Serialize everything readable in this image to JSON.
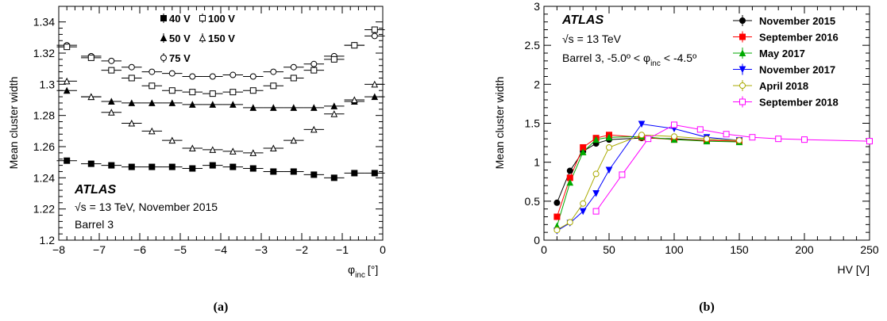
{
  "chart_data": [
    {
      "panel_label": "(a)",
      "type": "scatter",
      "xlabel_main": "φ",
      "xlabel_sub": "inc",
      "xlabel_unit": "[°]",
      "ylabel": "Mean cluster width",
      "xlim": [
        -8,
        0
      ],
      "ylim": [
        1.2,
        1.35
      ],
      "xticks": [
        -8,
        -7,
        -6,
        -5,
        -4,
        -3,
        -2,
        -1,
        0
      ],
      "xtick_labels": [
        "−8",
        "−7",
        "−6",
        "−5",
        "−4",
        "−3",
        "−2",
        "−1",
        "0"
      ],
      "yticks": [
        1.2,
        1.22,
        1.24,
        1.26,
        1.28,
        1.3,
        1.32,
        1.34
      ],
      "ytick_labels": [
        "1.2",
        "1.22",
        "1.24",
        "1.26",
        "1.28",
        "1.3",
        "1.32",
        "1.34"
      ],
      "experiment": "ATLAS",
      "info_lines": [
        "√s = 13 TeV, November 2015",
        "Barrel 3"
      ],
      "legend_position": "top",
      "series": [
        {
          "name": "40 V",
          "marker": "square-filled",
          "x": [
            -7.8,
            -7.2,
            -6.7,
            -6.2,
            -5.7,
            -5.2,
            -4.7,
            -4.2,
            -3.7,
            -3.2,
            -2.7,
            -2.2,
            -1.7,
            -1.2,
            -0.7,
            -0.2
          ],
          "y": [
            1.251,
            1.249,
            1.248,
            1.247,
            1.247,
            1.247,
            1.246,
            1.248,
            1.247,
            1.246,
            1.244,
            1.244,
            1.242,
            1.24,
            1.243,
            1.243
          ]
        },
        {
          "name": "50 V",
          "marker": "triangle-filled",
          "x": [
            -7.8,
            -7.2,
            -6.7,
            -6.2,
            -5.7,
            -5.2,
            -4.7,
            -4.2,
            -3.7,
            -3.2,
            -2.7,
            -2.2,
            -1.7,
            -1.2,
            -0.7,
            -0.2
          ],
          "y": [
            1.296,
            1.292,
            1.289,
            1.288,
            1.288,
            1.288,
            1.287,
            1.287,
            1.287,
            1.285,
            1.285,
            1.285,
            1.285,
            1.286,
            1.289,
            1.292
          ]
        },
        {
          "name": "75 V",
          "marker": "circle-open",
          "x": [
            -7.8,
            -7.2,
            -6.7,
            -6.2,
            -5.7,
            -5.2,
            -4.7,
            -4.2,
            -3.7,
            -3.2,
            -2.7,
            -2.2,
            -1.7,
            -1.2,
            -0.7,
            -0.2
          ],
          "y": [
            1.325,
            1.318,
            1.315,
            1.311,
            1.308,
            1.307,
            1.305,
            1.305,
            1.306,
            1.305,
            1.308,
            1.311,
            1.313,
            1.318,
            1.325,
            1.331
          ]
        },
        {
          "name": "100 V",
          "marker": "square-open",
          "x": [
            -7.8,
            -7.2,
            -6.7,
            -6.2,
            -5.7,
            -5.2,
            -4.7,
            -4.2,
            -3.7,
            -3.2,
            -2.7,
            -2.2,
            -1.7,
            -1.2,
            -0.7,
            -0.2
          ],
          "y": [
            1.324,
            1.317,
            1.309,
            1.304,
            1.299,
            1.296,
            1.295,
            1.294,
            1.295,
            1.296,
            1.299,
            1.304,
            1.309,
            1.316,
            1.325,
            1.335
          ]
        },
        {
          "name": "150 V",
          "marker": "triangle-open",
          "x": [
            -7.8,
            -7.2,
            -6.7,
            -6.2,
            -5.7,
            -5.2,
            -4.7,
            -4.2,
            -3.7,
            -3.2,
            -2.7,
            -2.2,
            -1.7,
            -1.2,
            -0.7,
            -0.2
          ],
          "y": [
            1.302,
            1.292,
            1.282,
            1.275,
            1.27,
            1.264,
            1.259,
            1.258,
            1.257,
            1.256,
            1.259,
            1.264,
            1.271,
            1.281,
            1.29,
            1.3
          ]
        }
      ]
    },
    {
      "panel_label": "(b)",
      "type": "line",
      "xlabel": "HV [V]",
      "ylabel": "Mean cluster width",
      "xlim": [
        0,
        250
      ],
      "ylim": [
        0,
        3
      ],
      "xticks": [
        0,
        50,
        100,
        150,
        200,
        250
      ],
      "xtick_labels": [
        "0",
        "50",
        "100",
        "150",
        "200",
        "250"
      ],
      "yticks": [
        0,
        0.5,
        1,
        1.5,
        2,
        2.5,
        3
      ],
      "ytick_labels": [
        "0",
        "0.5",
        "1",
        "1.5",
        "2",
        "2.5",
        "3"
      ],
      "experiment": "ATLAS",
      "info_line1": "√s = 13 TeV",
      "info_line2_pre": "Barrel 3, -5.0º < φ",
      "info_line2_sub": "inc",
      "info_line2_post": "< -4.5º",
      "legend_position": "top-right",
      "series": [
        {
          "name": "November 2015",
          "color": "#000000",
          "marker": "circle-filled",
          "x": [
            10,
            20,
            30,
            40,
            50,
            75,
            100,
            125,
            150
          ],
          "y": [
            0.48,
            0.89,
            1.14,
            1.24,
            1.29,
            1.31,
            1.3,
            1.28,
            1.27
          ]
        },
        {
          "name": "September 2016",
          "color": "#ff0000",
          "marker": "square-filled",
          "x": [
            10,
            20,
            30,
            40,
            50,
            75,
            100,
            125,
            150
          ],
          "y": [
            0.3,
            0.8,
            1.19,
            1.31,
            1.35,
            1.32,
            1.29,
            1.28,
            1.27
          ]
        },
        {
          "name": "May 2017",
          "color": "#00aa00",
          "marker": "triangle-filled",
          "x": [
            10,
            20,
            30,
            40,
            50,
            75,
            100,
            125,
            150
          ],
          "y": [
            0.18,
            0.74,
            1.13,
            1.29,
            1.32,
            1.33,
            1.29,
            1.27,
            1.26
          ]
        },
        {
          "name": "November 2017",
          "color": "#0000ff",
          "marker": "triangle-down-filled",
          "x": [
            10,
            20,
            30,
            40,
            50,
            75,
            100,
            125,
            150
          ],
          "y": [
            0.12,
            0.22,
            0.37,
            0.6,
            0.9,
            1.49,
            1.43,
            1.32,
            1.28
          ]
        },
        {
          "name": "April 2018",
          "color": "#aaaa00",
          "marker": "circle-open",
          "x": [
            10,
            20,
            30,
            40,
            50,
            75,
            100,
            125,
            150
          ],
          "y": [
            0.13,
            0.23,
            0.47,
            0.85,
            1.19,
            1.35,
            1.33,
            1.3,
            1.28
          ]
        },
        {
          "name": "September 2018",
          "color": "#ff00ff",
          "marker": "square-open",
          "x": [
            40,
            60,
            80,
            100,
            120,
            140,
            160,
            180,
            200,
            250
          ],
          "y": [
            0.37,
            0.84,
            1.3,
            1.48,
            1.42,
            1.36,
            1.32,
            1.3,
            1.29,
            1.27
          ]
        }
      ]
    }
  ]
}
